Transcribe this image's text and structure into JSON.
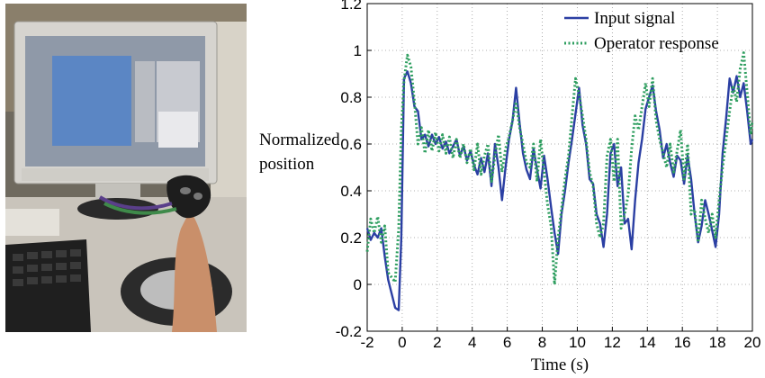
{
  "photo": {
    "description_icon": "photo-operator-joystick-monitor"
  },
  "chart_data": {
    "type": "line",
    "title": "",
    "xlabel": "Time (s)",
    "ylabel_line1": "Normalized",
    "ylabel_line2": "position",
    "xlim": [
      -2,
      20
    ],
    "ylim": [
      -0.2,
      1.2
    ],
    "xticks": [
      -2,
      0,
      2,
      4,
      6,
      8,
      10,
      12,
      14,
      16,
      18,
      20
    ],
    "yticks": [
      -0.2,
      0,
      0.2,
      0.4,
      0.6,
      0.8,
      1,
      1.2
    ],
    "ytick_labels": [
      "-0.2",
      "0",
      "0.2",
      "0.4",
      "0.6",
      "0.8",
      "1",
      "1.2"
    ],
    "grid": "dotted",
    "legend_position": "top-right",
    "series": [
      {
        "name": "Input signal",
        "color": "#2b3fa3",
        "style": "solid",
        "points": [
          [
            -2,
            0.24
          ],
          [
            -1.8,
            0.19
          ],
          [
            -1.6,
            0.22
          ],
          [
            -1.4,
            0.2
          ],
          [
            -1.2,
            0.24
          ],
          [
            -1,
            0.12
          ],
          [
            -0.8,
            0.02
          ],
          [
            -0.6,
            -0.04
          ],
          [
            -0.4,
            -0.1
          ],
          [
            -0.2,
            -0.11
          ],
          [
            -0.05,
            0.2
          ],
          [
            0.1,
            0.88
          ],
          [
            0.3,
            0.91
          ],
          [
            0.5,
            0.86
          ],
          [
            0.7,
            0.76
          ],
          [
            0.9,
            0.74
          ],
          [
            1.1,
            0.62
          ],
          [
            1.3,
            0.64
          ],
          [
            1.5,
            0.59
          ],
          [
            1.7,
            0.64
          ],
          [
            1.9,
            0.6
          ],
          [
            2.1,
            0.63
          ],
          [
            2.3,
            0.58
          ],
          [
            2.5,
            0.61
          ],
          [
            2.7,
            0.56
          ],
          [
            2.9,
            0.59
          ],
          [
            3.1,
            0.62
          ],
          [
            3.3,
            0.55
          ],
          [
            3.5,
            0.59
          ],
          [
            3.7,
            0.53
          ],
          [
            3.9,
            0.57
          ],
          [
            4.1,
            0.51
          ],
          [
            4.3,
            0.47
          ],
          [
            4.5,
            0.54
          ],
          [
            4.7,
            0.48
          ],
          [
            4.9,
            0.56
          ],
          [
            5.1,
            0.42
          ],
          [
            5.3,
            0.6
          ],
          [
            5.5,
            0.5
          ],
          [
            5.7,
            0.36
          ],
          [
            5.9,
            0.5
          ],
          [
            6.1,
            0.62
          ],
          [
            6.3,
            0.7
          ],
          [
            6.5,
            0.84
          ],
          [
            6.7,
            0.69
          ],
          [
            6.9,
            0.56
          ],
          [
            7.1,
            0.49
          ],
          [
            7.3,
            0.45
          ],
          [
            7.5,
            0.58
          ],
          [
            7.7,
            0.49
          ],
          [
            7.9,
            0.41
          ],
          [
            8.1,
            0.55
          ],
          [
            8.3,
            0.45
          ],
          [
            8.5,
            0.33
          ],
          [
            8.7,
            0.22
          ],
          [
            8.9,
            0.13
          ],
          [
            9.1,
            0.3
          ],
          [
            9.3,
            0.4
          ],
          [
            9.5,
            0.52
          ],
          [
            9.7,
            0.62
          ],
          [
            9.9,
            0.73
          ],
          [
            10.1,
            0.84
          ],
          [
            10.3,
            0.68
          ],
          [
            10.5,
            0.6
          ],
          [
            10.7,
            0.45
          ],
          [
            10.9,
            0.43
          ],
          [
            11.1,
            0.3
          ],
          [
            11.3,
            0.26
          ],
          [
            11.5,
            0.16
          ],
          [
            11.7,
            0.3
          ],
          [
            11.9,
            0.56
          ],
          [
            12.1,
            0.6
          ],
          [
            12.3,
            0.42
          ],
          [
            12.5,
            0.5
          ],
          [
            12.7,
            0.26
          ],
          [
            12.9,
            0.28
          ],
          [
            13.1,
            0.15
          ],
          [
            13.3,
            0.36
          ],
          [
            13.5,
            0.52
          ],
          [
            13.7,
            0.62
          ],
          [
            13.9,
            0.75
          ],
          [
            14.1,
            0.8
          ],
          [
            14.3,
            0.85
          ],
          [
            14.5,
            0.74
          ],
          [
            14.7,
            0.66
          ],
          [
            14.9,
            0.54
          ],
          [
            15.1,
            0.6
          ],
          [
            15.3,
            0.52
          ],
          [
            15.5,
            0.46
          ],
          [
            15.7,
            0.55
          ],
          [
            15.9,
            0.53
          ],
          [
            16.1,
            0.43
          ],
          [
            16.3,
            0.55
          ],
          [
            16.5,
            0.45
          ],
          [
            16.7,
            0.3
          ],
          [
            16.9,
            0.18
          ],
          [
            17.1,
            0.25
          ],
          [
            17.3,
            0.36
          ],
          [
            17.5,
            0.3
          ],
          [
            17.7,
            0.23
          ],
          [
            17.9,
            0.16
          ],
          [
            18.1,
            0.3
          ],
          [
            18.3,
            0.56
          ],
          [
            18.5,
            0.71
          ],
          [
            18.7,
            0.88
          ],
          [
            18.9,
            0.82
          ],
          [
            19.1,
            0.89
          ],
          [
            19.3,
            0.8
          ],
          [
            19.5,
            0.86
          ],
          [
            19.7,
            0.74
          ],
          [
            19.9,
            0.6
          ],
          [
            20,
            0.62
          ]
        ]
      },
      {
        "name": "Operator response",
        "color": "#2e9e5f",
        "style": "dotted",
        "points": [
          [
            -2,
            0.14
          ],
          [
            -1.8,
            0.28
          ],
          [
            -1.6,
            0.22
          ],
          [
            -1.4,
            0.29
          ],
          [
            -1.2,
            0.18
          ],
          [
            -1,
            0.25
          ],
          [
            -0.8,
            0.05
          ],
          [
            -0.6,
            0.03
          ],
          [
            -0.4,
            0.01
          ],
          [
            -0.2,
            0.24
          ],
          [
            -0.05,
            0.66
          ],
          [
            0.1,
            0.87
          ],
          [
            0.3,
            0.98
          ],
          [
            0.5,
            0.93
          ],
          [
            0.7,
            0.78
          ],
          [
            0.9,
            0.6
          ],
          [
            1.1,
            0.67
          ],
          [
            1.3,
            0.56
          ],
          [
            1.5,
            0.66
          ],
          [
            1.7,
            0.57
          ],
          [
            1.9,
            0.65
          ],
          [
            2.1,
            0.57
          ],
          [
            2.3,
            0.64
          ],
          [
            2.5,
            0.56
          ],
          [
            2.7,
            0.63
          ],
          [
            2.9,
            0.54
          ],
          [
            3.1,
            0.62
          ],
          [
            3.3,
            0.54
          ],
          [
            3.5,
            0.6
          ],
          [
            3.7,
            0.52
          ],
          [
            3.9,
            0.58
          ],
          [
            4.1,
            0.49
          ],
          [
            4.3,
            0.6
          ],
          [
            4.5,
            0.47
          ],
          [
            4.7,
            0.55
          ],
          [
            4.9,
            0.6
          ],
          [
            5.1,
            0.44
          ],
          [
            5.3,
            0.55
          ],
          [
            5.5,
            0.64
          ],
          [
            5.7,
            0.48
          ],
          [
            5.9,
            0.58
          ],
          [
            6.1,
            0.63
          ],
          [
            6.3,
            0.7
          ],
          [
            6.5,
            0.78
          ],
          [
            6.7,
            0.67
          ],
          [
            6.9,
            0.6
          ],
          [
            7.1,
            0.52
          ],
          [
            7.3,
            0.5
          ],
          [
            7.5,
            0.6
          ],
          [
            7.7,
            0.44
          ],
          [
            7.9,
            0.62
          ],
          [
            8.1,
            0.48
          ],
          [
            8.3,
            0.34
          ],
          [
            8.5,
            0.25
          ],
          [
            8.7,
            0.0
          ],
          [
            8.9,
            0.2
          ],
          [
            9.1,
            0.32
          ],
          [
            9.3,
            0.45
          ],
          [
            9.5,
            0.55
          ],
          [
            9.7,
            0.72
          ],
          [
            9.9,
            0.88
          ],
          [
            10.1,
            0.81
          ],
          [
            10.3,
            0.72
          ],
          [
            10.5,
            0.62
          ],
          [
            10.7,
            0.48
          ],
          [
            10.9,
            0.42
          ],
          [
            11.1,
            0.26
          ],
          [
            11.3,
            0.2
          ],
          [
            11.5,
            0.26
          ],
          [
            11.7,
            0.55
          ],
          [
            11.9,
            0.62
          ],
          [
            12.1,
            0.44
          ],
          [
            12.3,
            0.62
          ],
          [
            12.5,
            0.24
          ],
          [
            12.7,
            0.3
          ],
          [
            12.9,
            0.38
          ],
          [
            13.1,
            0.58
          ],
          [
            13.3,
            0.72
          ],
          [
            13.5,
            0.66
          ],
          [
            13.7,
            0.76
          ],
          [
            13.9,
            0.86
          ],
          [
            14.1,
            0.76
          ],
          [
            14.3,
            0.88
          ],
          [
            14.5,
            0.7
          ],
          [
            14.7,
            0.62
          ],
          [
            14.9,
            0.56
          ],
          [
            15.1,
            0.5
          ],
          [
            15.3,
            0.6
          ],
          [
            15.5,
            0.48
          ],
          [
            15.7,
            0.57
          ],
          [
            15.9,
            0.66
          ],
          [
            16.1,
            0.45
          ],
          [
            16.3,
            0.6
          ],
          [
            16.5,
            0.3
          ],
          [
            16.7,
            0.32
          ],
          [
            16.9,
            0.18
          ],
          [
            17.1,
            0.36
          ],
          [
            17.3,
            0.28
          ],
          [
            17.5,
            0.22
          ],
          [
            17.7,
            0.3
          ],
          [
            17.9,
            0.2
          ],
          [
            18.1,
            0.36
          ],
          [
            18.3,
            0.5
          ],
          [
            18.5,
            0.62
          ],
          [
            18.7,
            0.74
          ],
          [
            18.9,
            0.85
          ],
          [
            19.1,
            0.78
          ],
          [
            19.3,
            0.92
          ],
          [
            19.5,
            0.99
          ],
          [
            19.7,
            0.82
          ],
          [
            19.9,
            0.64
          ],
          [
            20,
            0.7
          ]
        ]
      }
    ]
  }
}
